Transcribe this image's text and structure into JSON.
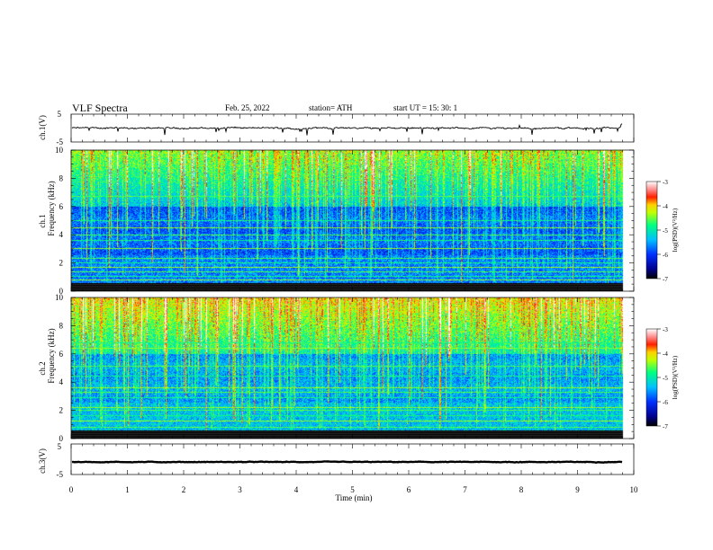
{
  "header": {
    "title": "VLF  Spectra",
    "date": "Feb. 25, 2022",
    "station": "station= ATH",
    "start": "start  UT  =    15: 30: 1"
  },
  "chart_data": {
    "type": "heatmap",
    "xlabel": "Time  (min)",
    "xlim": [
      0,
      10
    ],
    "xticks": [
      "0",
      "1",
      "2",
      "3",
      "4",
      "5",
      "6",
      "7",
      "8",
      "9",
      "10"
    ],
    "data_end_min": 9.8,
    "panels": [
      {
        "kind": "waveform",
        "ylabel": "ch.1(V)",
        "ylim": [
          -5,
          5
        ],
        "yticks": [
          "5",
          "-5"
        ],
        "level": 0,
        "noise_amplitude": 0.35,
        "spike_amplitude": 1.6
      },
      {
        "kind": "spectrogram",
        "ylabel_channel": "ch.1",
        "ylabel": "Frequency  (kHz)",
        "ylim": [
          0,
          10
        ],
        "yticks": [
          "0",
          "2",
          "4",
          "6",
          "8",
          "10"
        ],
        "colorbar": {
          "label": "log(PSD)(V²/Hz)",
          "range": [
            -7,
            -3
          ],
          "ticks": [
            "-3",
            "-4",
            "-5",
            "-6",
            "-7"
          ]
        },
        "bright_lines_khz": [
          0.25,
          0.45,
          0.75,
          1.0,
          1.35,
          1.65,
          2.0,
          2.3,
          3.0,
          3.6,
          4.0,
          4.5,
          5.0,
          6.7
        ],
        "noise_floor": 0.42
      },
      {
        "kind": "spectrogram",
        "ylabel_channel": "ch.2",
        "ylabel": "Frequency  (kHz)",
        "ylim": [
          0,
          10
        ],
        "yticks": [
          "0",
          "2",
          "4",
          "6",
          "8",
          "10"
        ],
        "colorbar": {
          "label": "log(PSD)(V²/Hz)",
          "range": [
            -7,
            -3
          ],
          "ticks": [
            "-3",
            "-4",
            "-5",
            "-6",
            "-7"
          ]
        },
        "bright_lines_khz": [
          0.3,
          0.8,
          1.2,
          1.6,
          2.0,
          2.2,
          2.9,
          3.3,
          3.6,
          4.4,
          5.1,
          6.4,
          6.8
        ],
        "noise_floor": 0.5
      },
      {
        "kind": "waveform",
        "ylabel": "ch.3(V)",
        "ylim": [
          -5,
          5
        ],
        "yticks": [
          "5",
          "-5"
        ],
        "level": -0.9,
        "noise_amplitude": 0.12,
        "spike_amplitude": 0
      }
    ],
    "grid": false
  }
}
